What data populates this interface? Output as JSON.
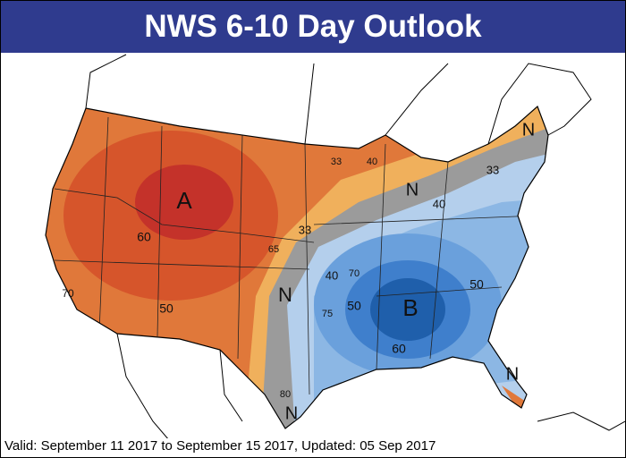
{
  "header": {
    "title": "NWS 6-10 Day Outlook"
  },
  "map": {
    "labels": [
      "A",
      "B",
      "N",
      "N",
      "N",
      "N",
      "N",
      "60",
      "50",
      "70",
      "65",
      "33",
      "33",
      "33",
      "40",
      "40",
      "70",
      "50",
      "75",
      "50",
      "60",
      "80",
      "40"
    ]
  },
  "footer": {
    "text": "Valid: September 11 2017 to September 15 2017, Updated: 05 Sep 2017"
  }
}
